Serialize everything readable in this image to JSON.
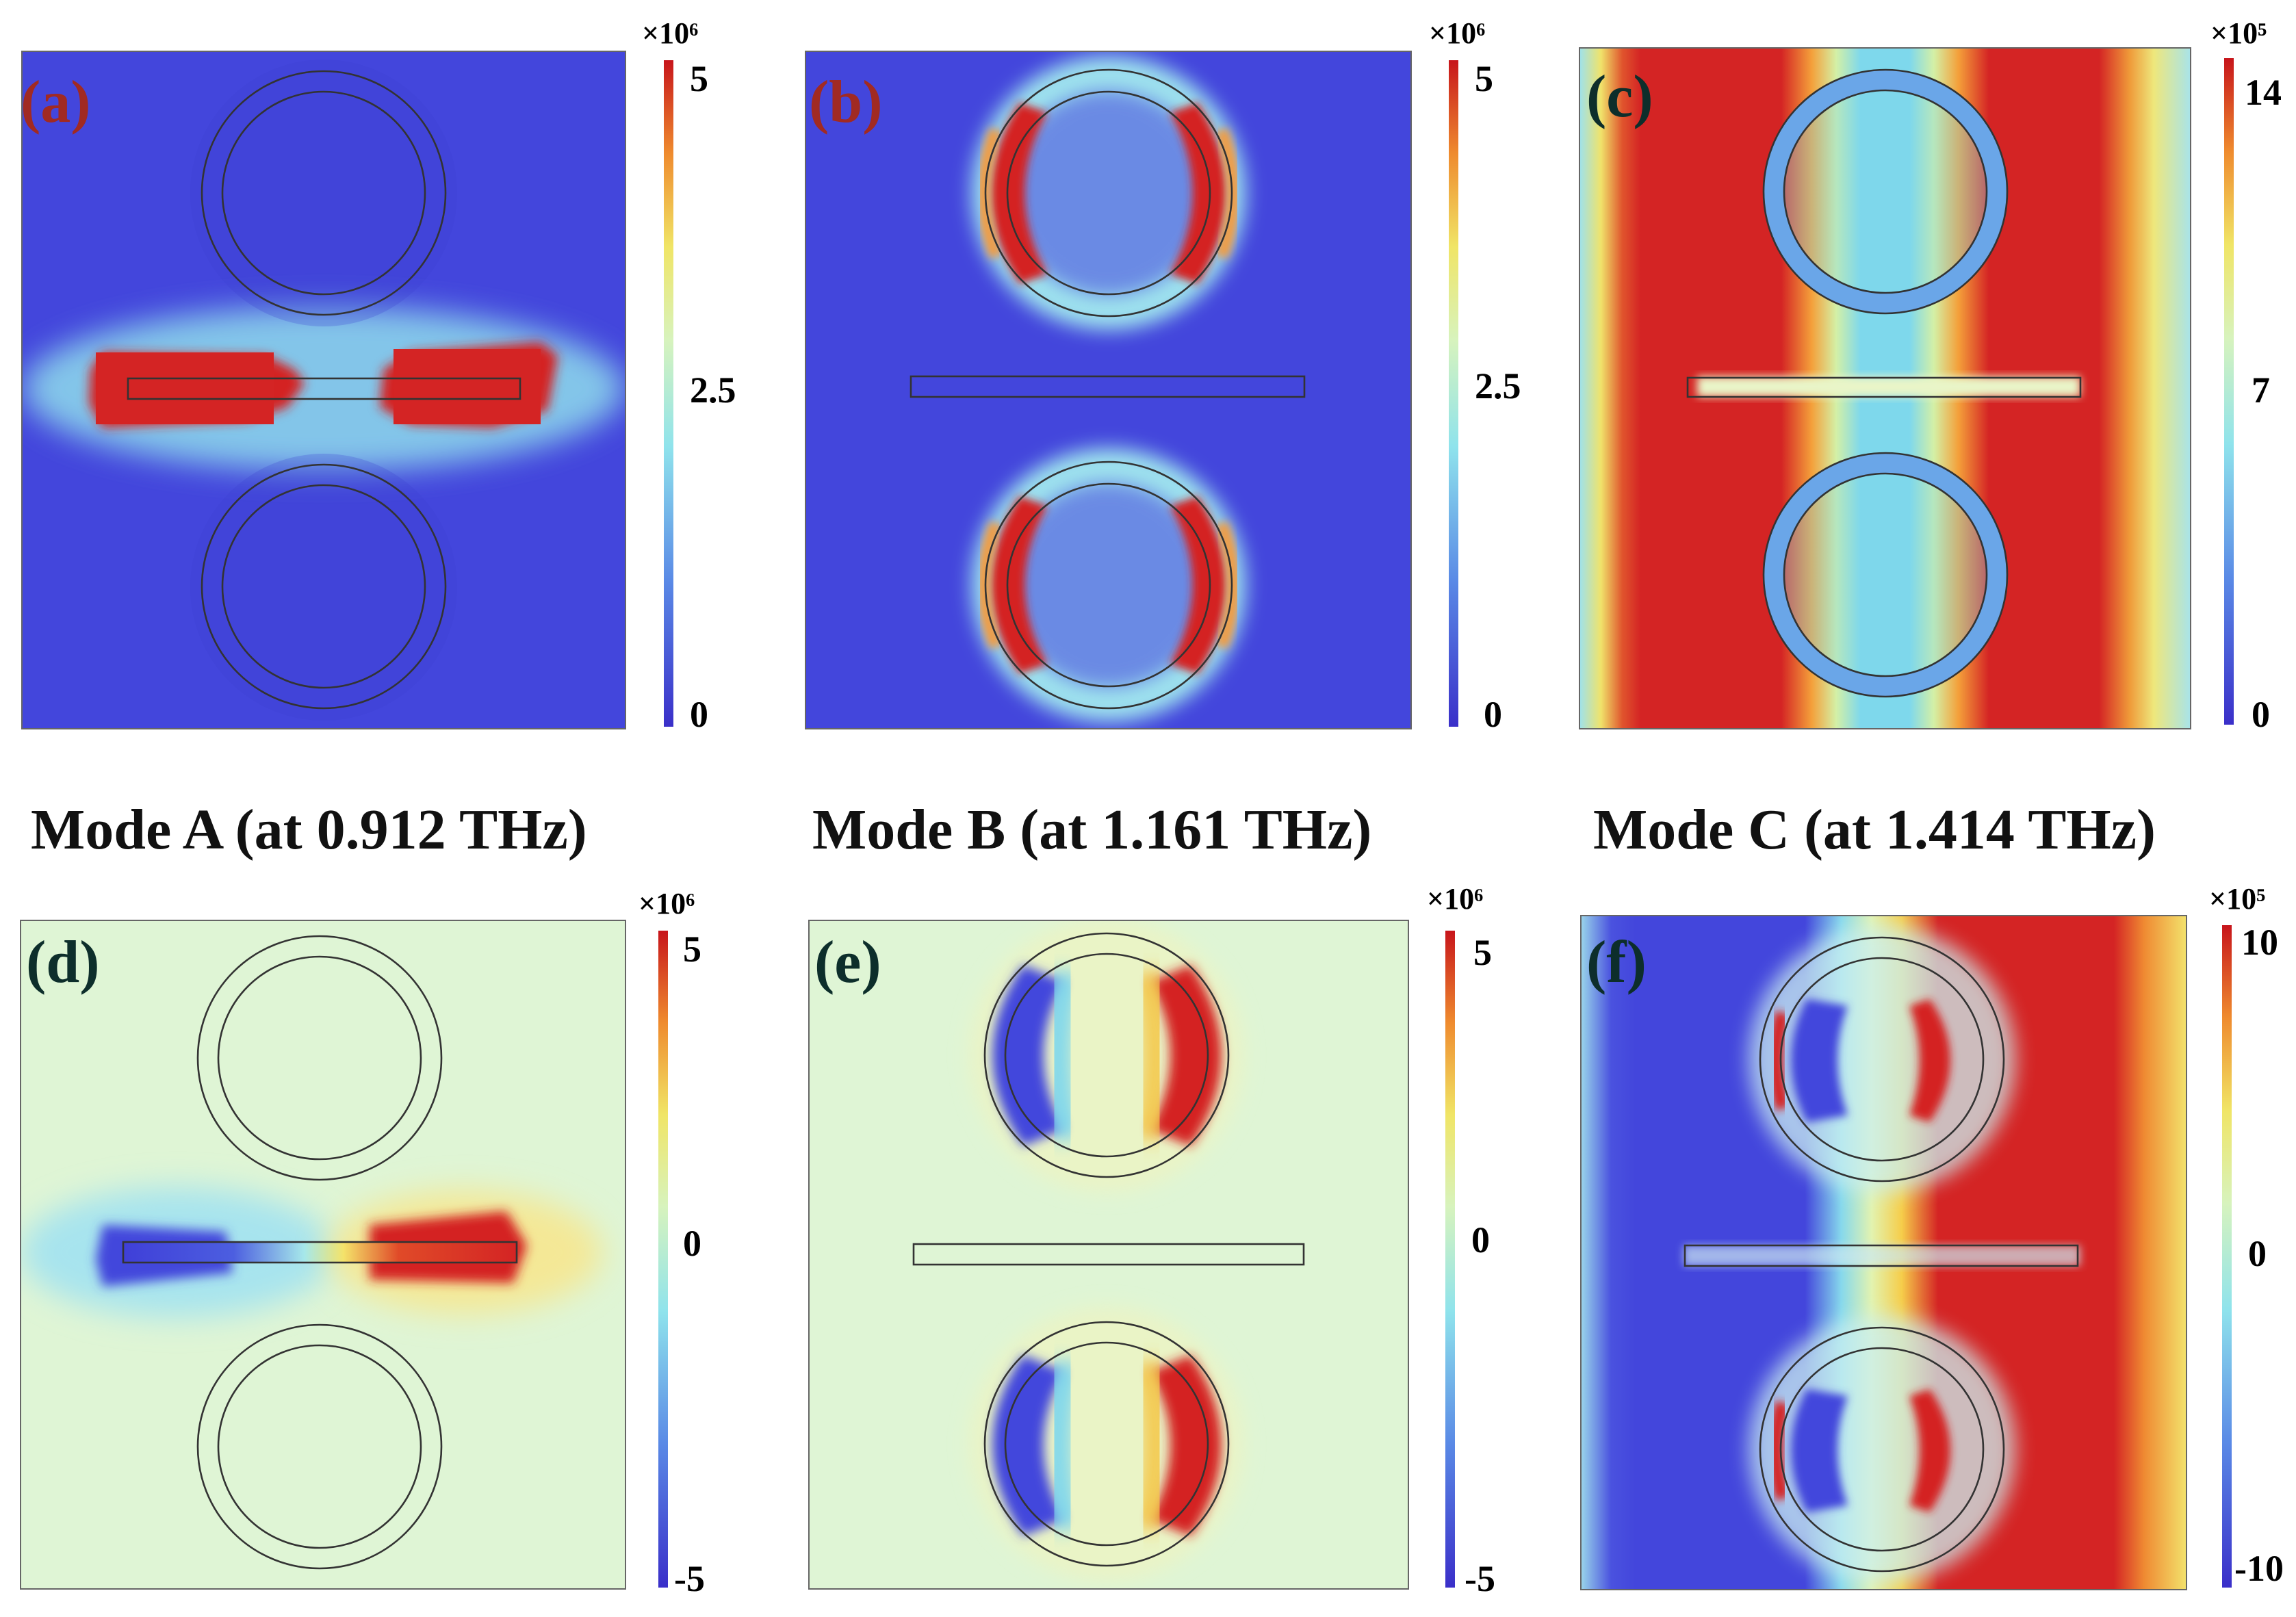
{
  "figure": {
    "captions": [
      "Mode A (at 0.912 THz)",
      "Mode B (at 1.161 THz)",
      "Mode C (at 1.414 THz)"
    ],
    "panels": [
      {
        "id": "a",
        "label": "(a)",
        "quantity": "field magnitude",
        "colorbar": {
          "exponent": "×10⁶",
          "ticks": [
            "5",
            "2.5",
            "0"
          ]
        }
      },
      {
        "id": "b",
        "label": "(b)",
        "quantity": "field magnitude",
        "colorbar": {
          "exponent": "×10⁶",
          "ticks": [
            "5",
            "2.5",
            "0"
          ]
        }
      },
      {
        "id": "c",
        "label": "(c)",
        "quantity": "field magnitude",
        "colorbar": {
          "exponent": "×10⁵",
          "ticks": [
            "14",
            "7",
            "0"
          ]
        }
      },
      {
        "id": "d",
        "label": "(d)",
        "quantity": "field component",
        "colorbar": {
          "exponent": "×10⁶",
          "ticks": [
            "5",
            "0",
            "-5"
          ]
        }
      },
      {
        "id": "e",
        "label": "(e)",
        "quantity": "field component",
        "colorbar": {
          "exponent": "×10⁶",
          "ticks": [
            "5",
            "0",
            "-5"
          ]
        }
      },
      {
        "id": "f",
        "label": "(f)",
        "quantity": "field component",
        "colorbar": {
          "exponent": "×10⁵",
          "ticks": [
            "10",
            "0",
            "-10"
          ]
        }
      }
    ]
  },
  "colors": {
    "red": "#d42424",
    "blue": "#4346dc",
    "lightgreen": "#dff5d5",
    "cyan": "#93e3ef",
    "label_red": "#a12a22",
    "label_dark": "#0d2e2b"
  }
}
